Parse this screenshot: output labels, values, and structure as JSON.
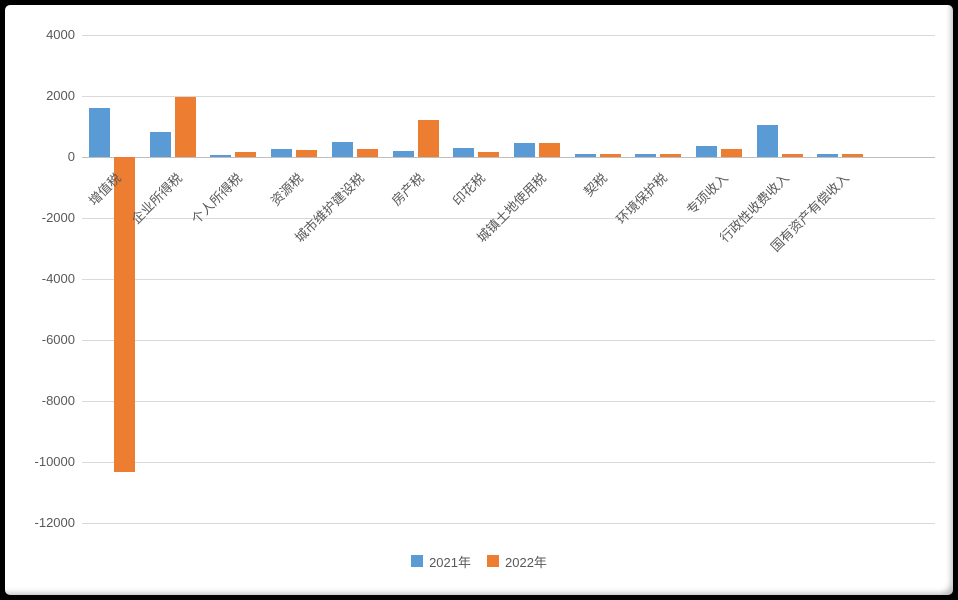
{
  "chart_data": {
    "type": "bar",
    "title": "",
    "xlabel": "",
    "ylabel": "",
    "categories": [
      "增值税",
      "企业所得税",
      "个人所得税",
      "资源税",
      "城市维护建设税",
      "房产税",
      "印花税",
      "城镇土地使用税",
      "契税",
      "环境保护税",
      "专项收入",
      "行政性收费收入",
      "国有资产有偿收入"
    ],
    "series": [
      {
        "name": "2021年",
        "color": "#5B9BD5",
        "values": [
          1600,
          830,
          80,
          250,
          500,
          190,
          310,
          460,
          110,
          110,
          370,
          1050,
          100
        ]
      },
      {
        "name": "2022年",
        "color": "#ED7D31",
        "values": [
          -10320,
          1980,
          150,
          220,
          270,
          1220,
          180,
          450,
          100,
          100,
          250,
          100,
          90
        ]
      }
    ],
    "ylim": [
      -12000,
      4000
    ],
    "yticks": [
      4000,
      2000,
      0,
      -2000,
      -4000,
      -6000,
      -8000,
      -10000,
      -12000
    ],
    "grid": "horizontal",
    "legend_position": "bottom",
    "colors": {
      "axis_text": "#595959",
      "gridline": "#D9D9D9",
      "zero_axis": "#BFBFBF",
      "frame": "#000000",
      "background": "#FFFFFF"
    }
  }
}
